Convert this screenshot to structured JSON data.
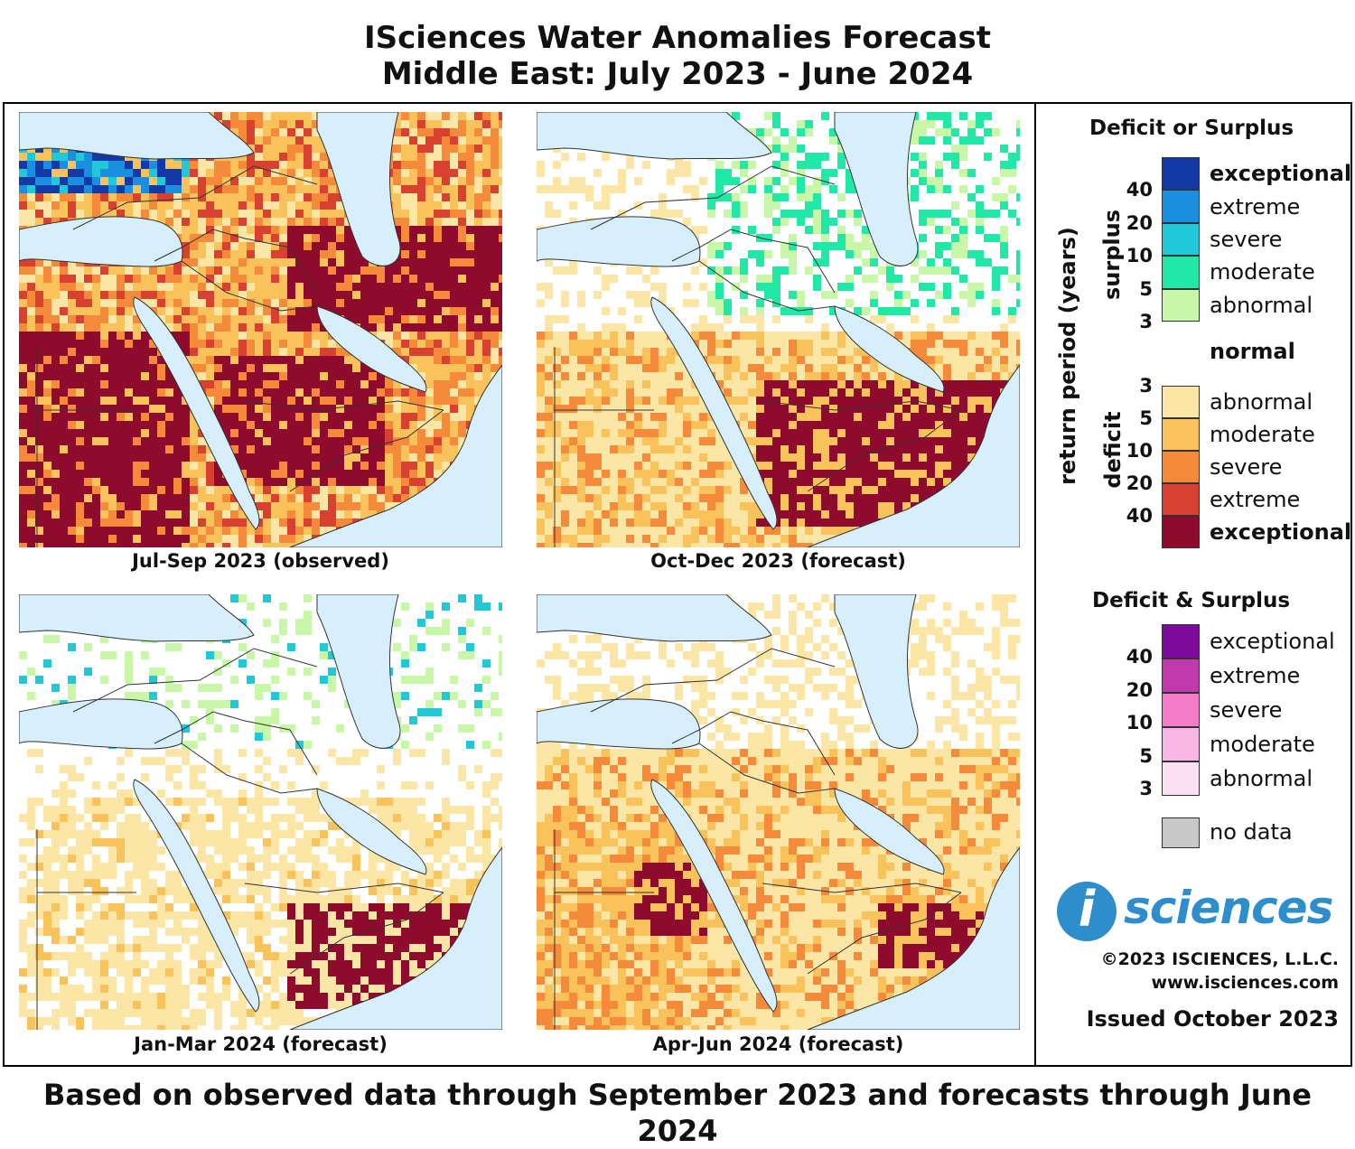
{
  "title": {
    "line1": "ISciences Water Anomalies Forecast",
    "line2": "Middle East: July 2023 - June 2024"
  },
  "maps": [
    {
      "caption": "Jul-Sep 2023 (observed)",
      "dominant_category": "exceptional-deficit"
    },
    {
      "caption": "Oct-Dec 2023 (forecast)",
      "dominant_category": "abnormal-deficit"
    },
    {
      "caption": "Jan-Mar 2024 (forecast)",
      "dominant_category": "normal"
    },
    {
      "caption": "Apr-Jun 2024 (forecast)",
      "dominant_category": "abnormal-deficit"
    }
  ],
  "legend": {
    "section1_title": "Deficit or Surplus",
    "axis_label": "return period (years)",
    "surplus_label": "surplus",
    "deficit_label": "deficit",
    "surplus_items": [
      {
        "label": "exceptional",
        "color": "#1338a8",
        "bold": true
      },
      {
        "label": "extreme",
        "color": "#1a8fe0",
        "bold": false
      },
      {
        "label": "severe",
        "color": "#20c8d8",
        "bold": false
      },
      {
        "label": "moderate",
        "color": "#20e8a6",
        "bold": false
      },
      {
        "label": "abnormal",
        "color": "#c8f7a8",
        "bold": false
      }
    ],
    "surplus_ticks": [
      "40",
      "20",
      "10",
      "5",
      "3"
    ],
    "normal_label": "normal",
    "deficit_items": [
      {
        "label": "abnormal",
        "color": "#fbe6a6",
        "bold": false
      },
      {
        "label": "moderate",
        "color": "#f9c25a",
        "bold": false
      },
      {
        "label": "severe",
        "color": "#f58a3a",
        "bold": false
      },
      {
        "label": "extreme",
        "color": "#d8412f",
        "bold": false
      },
      {
        "label": "exceptional",
        "color": "#8e0b2e",
        "bold": true
      }
    ],
    "deficit_ticks": [
      "3",
      "5",
      "10",
      "20",
      "40"
    ],
    "section2_title": "Deficit & Surplus",
    "both_items": [
      {
        "label": "exceptional",
        "color": "#7c0a9a"
      },
      {
        "label": "extreme",
        "color": "#c03aae"
      },
      {
        "label": "severe",
        "color": "#f47cc8"
      },
      {
        "label": "moderate",
        "color": "#f8b6e6"
      },
      {
        "label": "abnormal",
        "color": "#fce0f0"
      }
    ],
    "both_ticks": [
      "40",
      "20",
      "10",
      "5",
      "3"
    ],
    "nodata_label": "no data",
    "nodata_color": "#c8c8c8"
  },
  "brand": {
    "logo_mark": "i",
    "logo_text": "sciences",
    "copyright": "©2023 ISCIENCES, L.L.C.",
    "website": "www.isciences.com",
    "issued": "Issued October 2023"
  },
  "colors": {
    "water": "#d6effa",
    "border": "#333333"
  },
  "footer": "Based on observed data through September 2023 and forecasts through June 2024"
}
